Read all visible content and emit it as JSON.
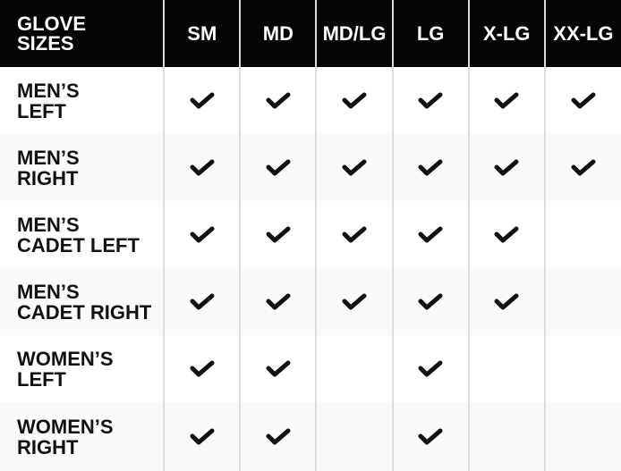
{
  "header": {
    "title_lines": [
      "GLOVE",
      "SIZES"
    ],
    "sizes": [
      "SM",
      "MD",
      "MD/LG",
      "LG",
      "X-LG",
      "XX-LG"
    ]
  },
  "rows": [
    {
      "label_lines": [
        "MEN’S",
        "LEFT"
      ],
      "available": [
        true,
        true,
        true,
        true,
        true,
        true
      ]
    },
    {
      "label_lines": [
        "MEN’S",
        "RIGHT"
      ],
      "available": [
        true,
        true,
        true,
        true,
        true,
        true
      ]
    },
    {
      "label_lines": [
        "MEN’S",
        "CADET LEFT"
      ],
      "available": [
        true,
        true,
        true,
        true,
        true,
        false
      ]
    },
    {
      "label_lines": [
        "MEN’S",
        "CADET RIGHT"
      ],
      "available": [
        true,
        true,
        true,
        true,
        true,
        false
      ]
    },
    {
      "label_lines": [
        "WOMEN’S",
        "LEFT"
      ],
      "available": [
        true,
        true,
        false,
        true,
        false,
        false
      ]
    },
    {
      "label_lines": [
        "WOMEN’S",
        "RIGHT"
      ],
      "available": [
        true,
        true,
        false,
        true,
        false,
        false
      ]
    }
  ],
  "icons": {
    "available": "checkmark-icon"
  },
  "colors": {
    "header_bg": "#050508",
    "header_text": "#ffffff",
    "alt_row_bg": "#fafafa",
    "divider": "#dcdcdc",
    "check": "#111111"
  }
}
